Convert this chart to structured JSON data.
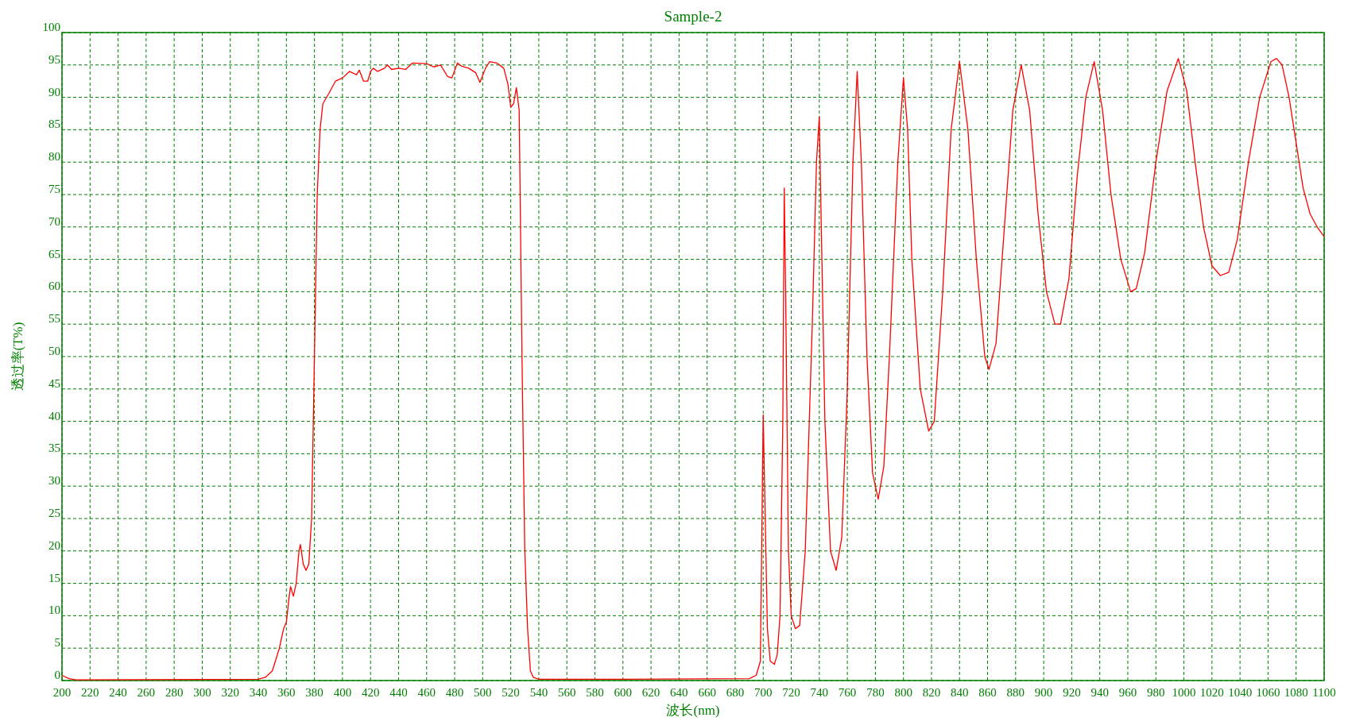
{
  "chart_data": {
    "type": "line",
    "title": "Sample-2",
    "xlabel": "波长(nm)",
    "ylabel": "透过率(T%)",
    "xlim": [
      200,
      1100
    ],
    "ylim": [
      0,
      100
    ],
    "xticks": [
      200,
      220,
      240,
      260,
      280,
      300,
      320,
      340,
      360,
      380,
      400,
      420,
      440,
      460,
      480,
      500,
      520,
      540,
      560,
      580,
      600,
      620,
      640,
      660,
      680,
      700,
      720,
      740,
      760,
      780,
      800,
      820,
      840,
      860,
      880,
      900,
      920,
      940,
      960,
      980,
      1000,
      1020,
      1040,
      1060,
      1080,
      1100
    ],
    "yticks": [
      0,
      5,
      10,
      15,
      20,
      25,
      30,
      35,
      40,
      45,
      50,
      55,
      60,
      65,
      70,
      75,
      80,
      85,
      90,
      95,
      100
    ],
    "grid": true,
    "series": [
      {
        "color": "#ff0000",
        "x": [
          200,
          205,
          210,
          340,
          345,
          350,
          355,
          358,
          360,
          362,
          363,
          365,
          367,
          369,
          370,
          372,
          374,
          376,
          378,
          380,
          382,
          384,
          386,
          390,
          395,
          400,
          405,
          410,
          412,
          415,
          418,
          420,
          422,
          425,
          430,
          432,
          435,
          440,
          445,
          450,
          460,
          465,
          470,
          475,
          478,
          482,
          485,
          490,
          495,
          498,
          502,
          505,
          510,
          515,
          518,
          520,
          522,
          524,
          526,
          528,
          530,
          532,
          534,
          536,
          540,
          600,
          690,
          695,
          698,
          700,
          701,
          703,
          705,
          708,
          710,
          712,
          714,
          715,
          716,
          718,
          720,
          723,
          726,
          730,
          735,
          738,
          740,
          741,
          744,
          748,
          752,
          756,
          760,
          764,
          767,
          770,
          774,
          778,
          782,
          786,
          790,
          796,
          800,
          803,
          806,
          812,
          818,
          822,
          828,
          834,
          840,
          846,
          852,
          858,
          861,
          866,
          872,
          878,
          884,
          890,
          896,
          902,
          908,
          912,
          918,
          924,
          930,
          936,
          942,
          948,
          955,
          962,
          966,
          972,
          980,
          988,
          996,
          1002,
          1008,
          1014,
          1020,
          1026,
          1032,
          1038,
          1046,
          1054,
          1062,
          1066,
          1070,
          1075,
          1080,
          1085,
          1090,
          1095,
          1100
        ],
        "values": [
          0.8,
          0.3,
          0.1,
          0.2,
          0.5,
          1.5,
          5,
          8,
          9,
          13,
          14.5,
          13,
          15,
          20,
          21,
          18,
          17,
          18,
          25,
          50,
          75,
          85,
          89,
          90.5,
          92.5,
          93,
          94,
          93.5,
          94.2,
          92.5,
          92.5,
          94,
          94.5,
          94,
          94.5,
          95,
          94.3,
          94.5,
          94.3,
          95.3,
          95.2,
          94.7,
          95,
          93.2,
          93,
          95.3,
          94.8,
          94.5,
          93.8,
          92.3,
          94.5,
          95.5,
          95.3,
          94.5,
          92,
          88.5,
          89,
          91.5,
          88,
          50,
          20,
          8,
          1.5,
          0.5,
          0.2,
          0.2,
          0.3,
          0.8,
          3,
          41,
          30,
          8,
          3,
          2.5,
          4,
          10,
          40,
          76,
          60,
          20,
          10,
          8,
          8.5,
          20,
          55,
          80,
          87,
          75,
          40,
          20,
          17,
          22,
          45,
          80,
          94,
          80,
          50,
          32,
          28,
          33,
          50,
          80,
          93,
          85,
          65,
          45,
          38.5,
          40,
          60,
          85,
          95.5,
          85,
          65,
          50,
          48,
          52,
          70,
          88,
          95,
          88,
          72,
          60,
          55,
          55,
          62,
          78,
          90,
          95.5,
          88,
          75,
          65,
          60,
          60.5,
          66,
          80,
          91,
          96,
          91,
          80,
          70,
          64,
          62.5,
          63,
          68,
          80,
          90,
          95.5,
          96,
          95,
          90,
          83,
          76,
          72,
          70,
          68.5
        ]
      }
    ]
  }
}
